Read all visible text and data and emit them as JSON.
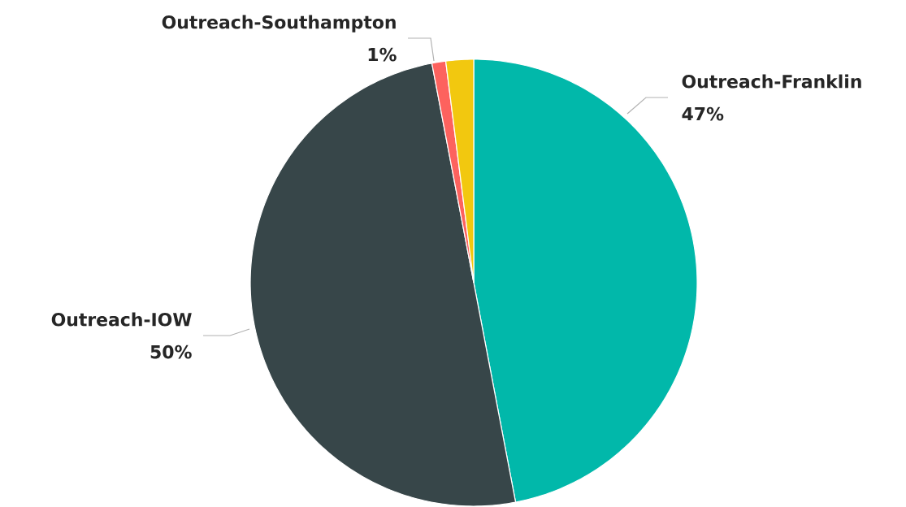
{
  "chart_data": {
    "type": "pie",
    "categories": [
      "Outreach-Franklin",
      "Outreach-IOW",
      "Outreach-Southampton",
      null
    ],
    "values": [
      47,
      50,
      1,
      2
    ],
    "colors": [
      "#01b8aa",
      "#374649",
      "#fd625e",
      "#f2c80f"
    ],
    "value_labels": [
      "47%",
      "50%",
      "1%",
      null
    ]
  }
}
